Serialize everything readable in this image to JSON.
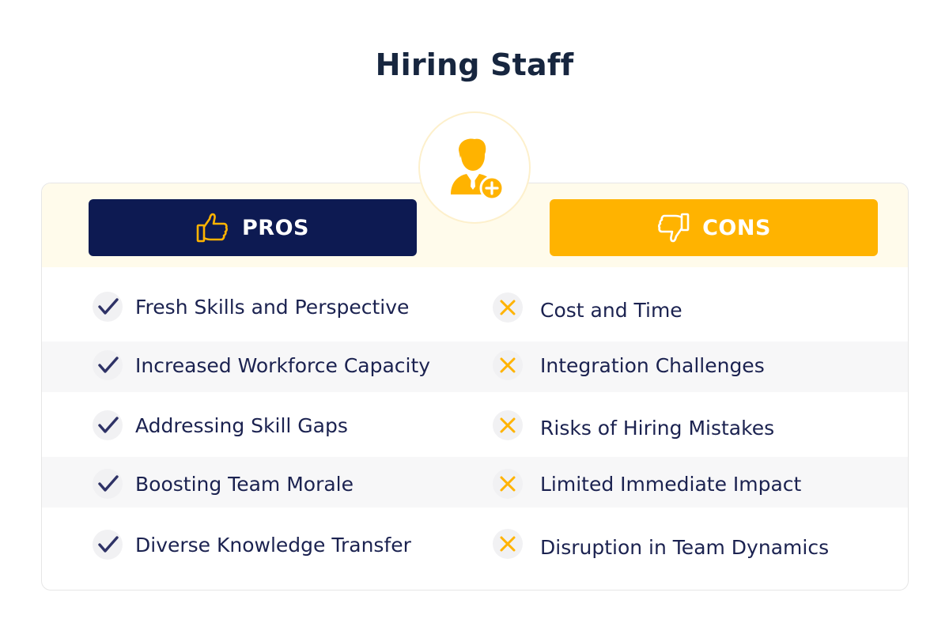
{
  "title": "Hiring Staff",
  "badge_icon": "add-person-icon",
  "pros": {
    "label": "PROS",
    "icon": "thumbs-up-icon",
    "items": [
      "Fresh Skills and Perspective",
      "Increased Workforce Capacity",
      "Addressing Skill Gaps",
      "Boosting Team Morale",
      "Diverse Knowledge Transfer"
    ]
  },
  "cons": {
    "label": "CONS",
    "icon": "thumbs-down-icon",
    "items": [
      "Cost and Time",
      "Integration Challenges",
      "Risks of Hiring Mistakes",
      "Limited Immediate Impact",
      "Disruption in Team Dynamics"
    ]
  },
  "colors": {
    "navy": "#0d1a52",
    "amber": "#ffb300",
    "check": "#2e3266",
    "cross": "#ffb300"
  }
}
